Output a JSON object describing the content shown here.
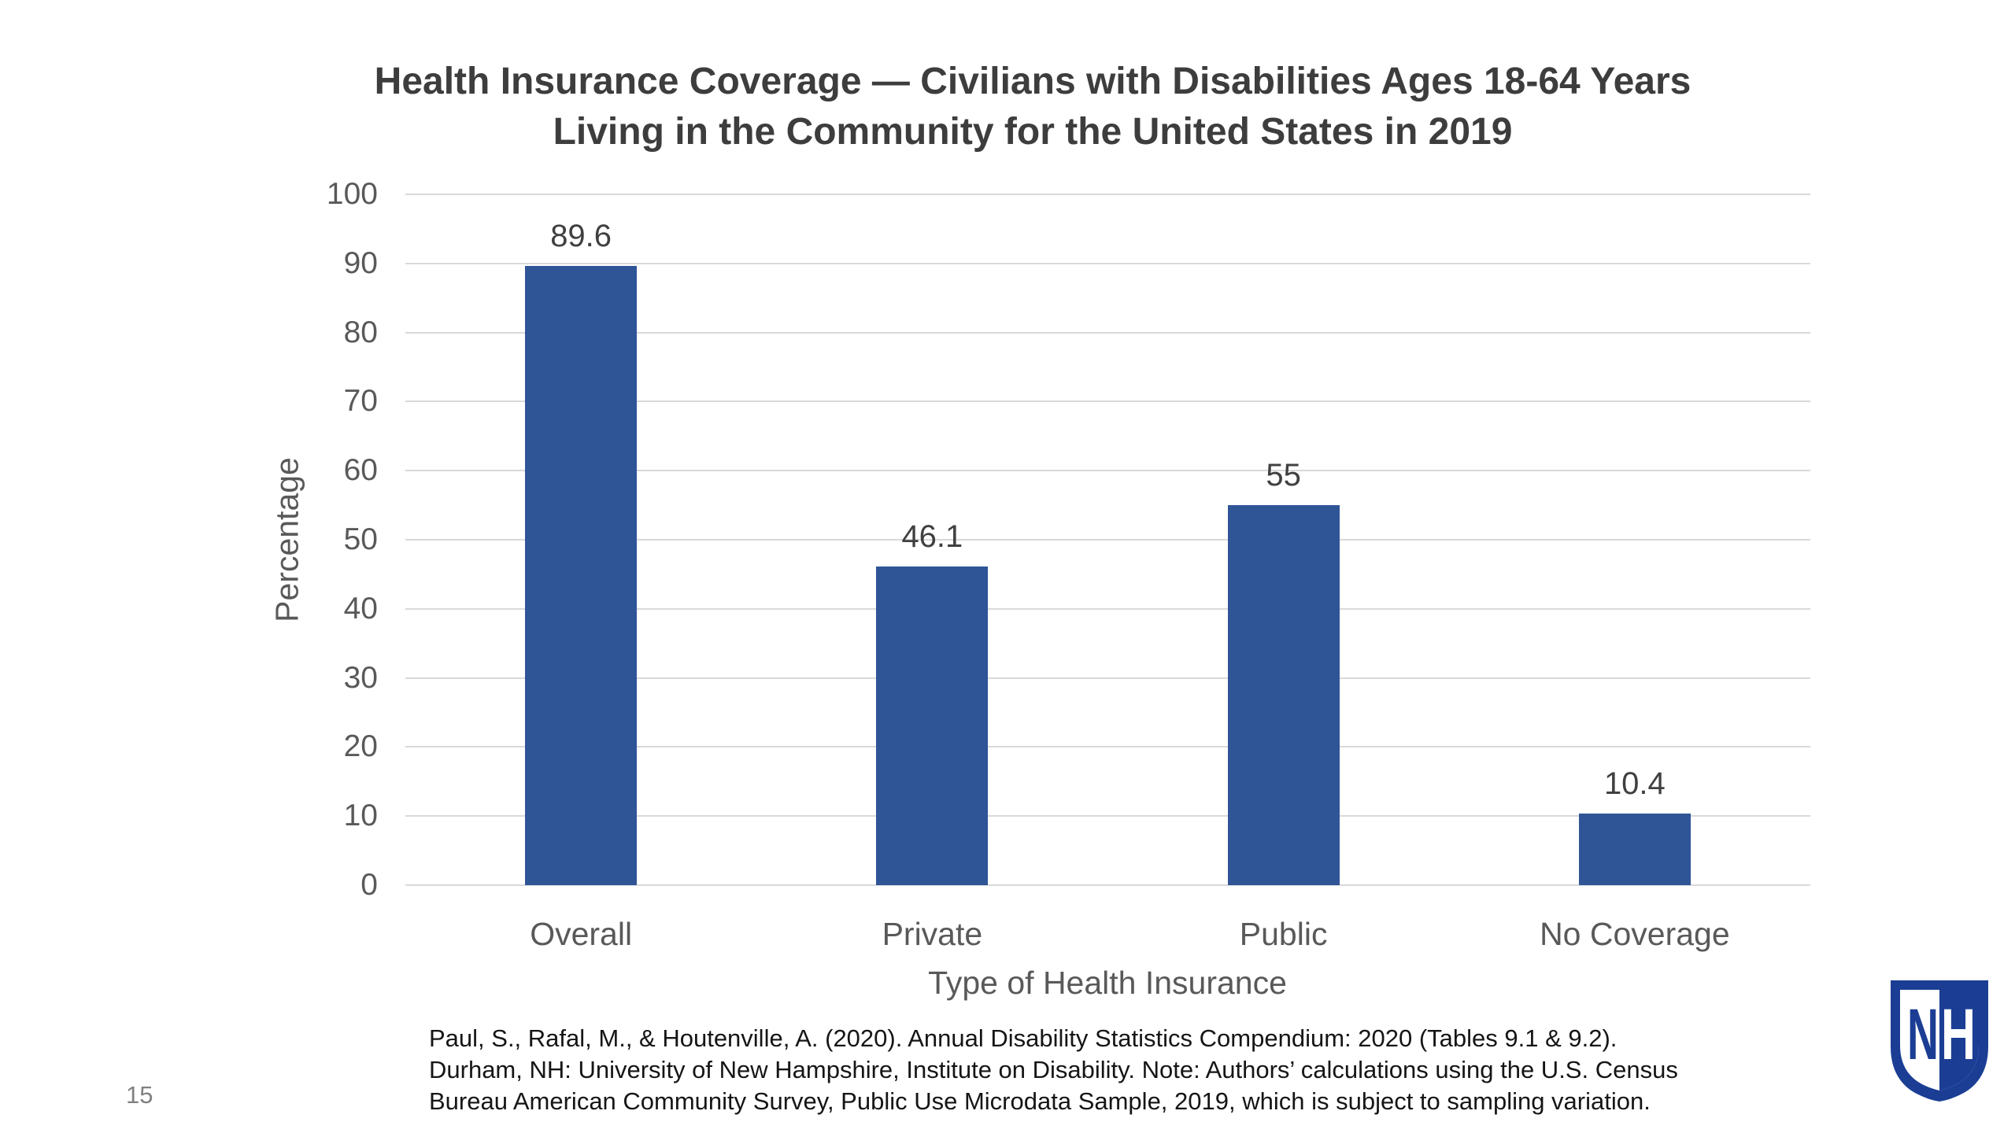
{
  "slide": {
    "page_number": "15"
  },
  "chart_data": {
    "type": "bar",
    "title": "Health Insurance Coverage — Civilians with Disabilities Ages 18-64 Years Living in the Community for the United States in 2019",
    "title_lines": [
      "Health Insurance Coverage — Civilians with Disabilities Ages 18-64 Years",
      "Living in the Community for the United States in 2019"
    ],
    "categories": [
      "Overall",
      "Private",
      "Public",
      "No Coverage"
    ],
    "values": [
      89.6,
      46.1,
      55,
      10.4
    ],
    "value_labels": [
      "89.6",
      "46.1",
      "55",
      "10.4"
    ],
    "xlabel": "Type of Health Insurance",
    "ylabel": "Percentage",
    "ylim": [
      0,
      100
    ],
    "yticks": [
      0,
      10,
      20,
      30,
      40,
      50,
      60,
      70,
      80,
      90,
      100
    ],
    "grid": true,
    "legend_position": "none",
    "bar_color": "#2F5597",
    "gridline_color": "#D9D9D9",
    "axis_text_color": "#595959",
    "data_label_color": "#404040"
  },
  "citation": {
    "lines": [
      "Paul, S., Rafal, M., & Houtenville, A. (2020). Annual Disability Statistics Compendium: 2020 (Tables 9.1 & 9.2).",
      "Durham, NH: University of New Hampshire, Institute on Disability. Note: Authors’ calculations using the U.S. Census",
      "Bureau American Community Survey, Public Use Microdata Sample, 2019, which is subject to sampling variation."
    ]
  },
  "logo": {
    "name": "university-of-new-hampshire-shield",
    "letter_n": "N",
    "letter_h": "H",
    "shield_color": "#1B3E94"
  }
}
